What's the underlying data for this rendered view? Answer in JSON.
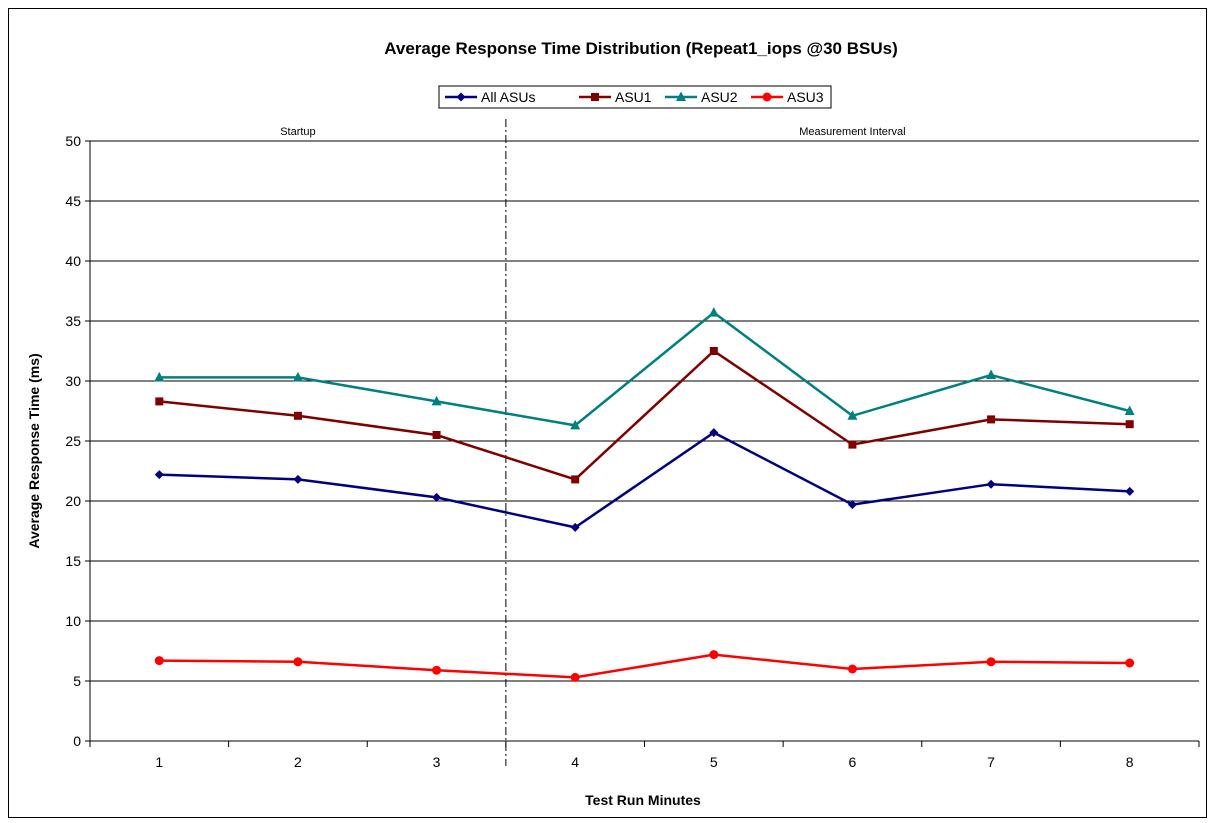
{
  "chart_data": {
    "type": "line",
    "title": "Average Response Time Distribution (Repeat1_iops @30 BSUs)",
    "xlabel": "Test Run Minutes",
    "ylabel": "Average Response Time (ms)",
    "x": [
      1,
      2,
      3,
      4,
      5,
      6,
      7,
      8
    ],
    "x_tick_labels": [
      "1",
      "2",
      "3",
      "4",
      "5",
      "6",
      "7",
      "8"
    ],
    "ylim": [
      0,
      50
    ],
    "y_ticks": [
      0,
      5,
      10,
      15,
      20,
      25,
      30,
      35,
      40,
      45,
      50
    ],
    "y_tick_labels": [
      "0",
      "5",
      "10",
      "15",
      "20",
      "25",
      "30",
      "35",
      "40",
      "45",
      "50"
    ],
    "grid": "horizontal",
    "legend_position": "top-center",
    "phases": [
      {
        "label": "Startup",
        "from": 1,
        "to": 3
      },
      {
        "label": "Measurement Interval",
        "from": 4,
        "to": 8
      }
    ],
    "separator_after_x": 3,
    "series": [
      {
        "name": "All ASUs",
        "color": "#000080",
        "marker": "diamond",
        "values": [
          22.2,
          21.8,
          20.3,
          17.8,
          25.7,
          19.7,
          21.4,
          20.8
        ]
      },
      {
        "name": "ASU1",
        "color": "#800000",
        "marker": "square",
        "values": [
          28.3,
          27.1,
          25.5,
          21.8,
          32.5,
          24.7,
          26.8,
          26.4
        ]
      },
      {
        "name": "ASU2",
        "color": "#008080",
        "marker": "triangle",
        "values": [
          30.3,
          30.3,
          28.3,
          26.3,
          35.7,
          27.1,
          30.5,
          27.5
        ]
      },
      {
        "name": "ASU3",
        "color": "#ff0000",
        "marker": "circle",
        "values": [
          6.7,
          6.6,
          5.9,
          5.3,
          7.2,
          6.0,
          6.6,
          6.5
        ]
      }
    ]
  }
}
